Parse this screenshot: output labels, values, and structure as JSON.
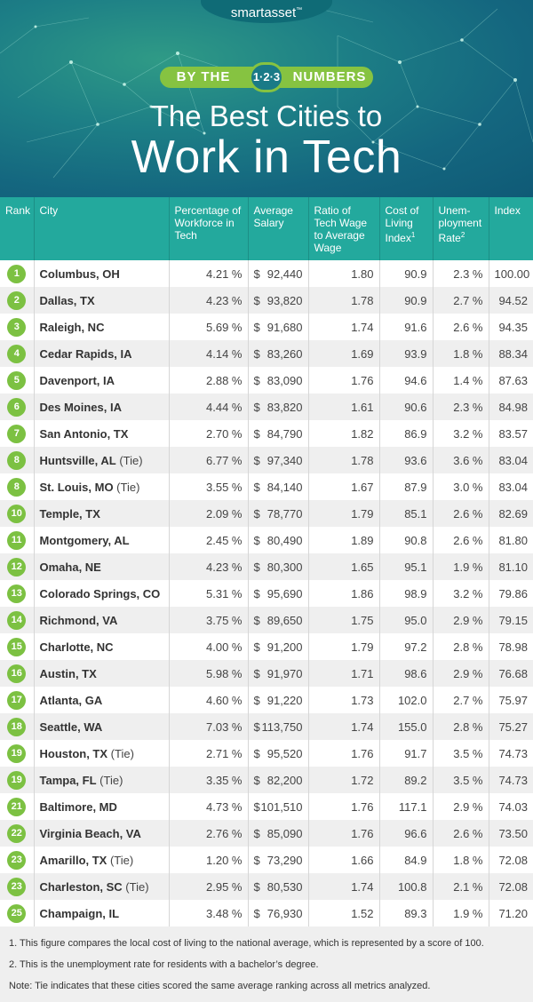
{
  "brand": {
    "logo": "smartasset",
    "logo_tm": "™"
  },
  "banner": {
    "by_the": "BY THE",
    "badge": "1·2·3",
    "numbers": "NUMBERS",
    "title_line1": "The Best Cities to",
    "title_line2": "Work in Tech"
  },
  "table": {
    "headers": {
      "rank": "Rank",
      "city": "City",
      "pct": "Percentage of Workforce in Tech",
      "salary": "Average Salary",
      "ratio": "Ratio of Tech Wage to Average Wage",
      "col": "Cost of Living Index",
      "col_sup": "1",
      "unemp": "Unem-ployment Rate",
      "unemp_sup": "2",
      "index": "Index"
    },
    "rows": [
      {
        "rank": "1",
        "city": "Columbus, OH",
        "tie": "",
        "pct": "4.21 %",
        "cur": "$",
        "salary": "92,440",
        "ratio": "1.80",
        "col": "90.9",
        "unemp": "2.3 %",
        "index": "100.00"
      },
      {
        "rank": "2",
        "city": "Dallas, TX",
        "tie": "",
        "pct": "4.23 %",
        "cur": "$",
        "salary": "93,820",
        "ratio": "1.78",
        "col": "90.9",
        "unemp": "2.7 %",
        "index": "94.52"
      },
      {
        "rank": "3",
        "city": "Raleigh, NC",
        "tie": "",
        "pct": "5.69 %",
        "cur": "$",
        "salary": "91,680",
        "ratio": "1.74",
        "col": "91.6",
        "unemp": "2.6 %",
        "index": "94.35"
      },
      {
        "rank": "4",
        "city": "Cedar Rapids, IA",
        "tie": "",
        "pct": "4.14 %",
        "cur": "$",
        "salary": "83,260",
        "ratio": "1.69",
        "col": "93.9",
        "unemp": "1.8 %",
        "index": "88.34"
      },
      {
        "rank": "5",
        "city": "Davenport, IA",
        "tie": "",
        "pct": "2.88 %",
        "cur": "$",
        "salary": "83,090",
        "ratio": "1.76",
        "col": "94.6",
        "unemp": "1.4 %",
        "index": "87.63"
      },
      {
        "rank": "6",
        "city": "Des Moines, IA",
        "tie": "",
        "pct": "4.44 %",
        "cur": "$",
        "salary": "83,820",
        "ratio": "1.61",
        "col": "90.6",
        "unemp": "2.3 %",
        "index": "84.98"
      },
      {
        "rank": "7",
        "city": "San Antonio, TX",
        "tie": "",
        "pct": "2.70 %",
        "cur": "$",
        "salary": "84,790",
        "ratio": "1.82",
        "col": "86.9",
        "unemp": "3.2 %",
        "index": "83.57"
      },
      {
        "rank": "8",
        "city": "Huntsville, AL",
        "tie": " (Tie)",
        "pct": "6.77 %",
        "cur": "$",
        "salary": "97,340",
        "ratio": "1.78",
        "col": "93.6",
        "unemp": "3.6 %",
        "index": "83.04"
      },
      {
        "rank": "8",
        "city": "St. Louis, MO",
        "tie": " (Tie)",
        "pct": "3.55 %",
        "cur": "$",
        "salary": "84,140",
        "ratio": "1.67",
        "col": "87.9",
        "unemp": "3.0 %",
        "index": "83.04"
      },
      {
        "rank": "10",
        "city": "Temple, TX",
        "tie": "",
        "pct": "2.09 %",
        "cur": "$",
        "salary": "78,770",
        "ratio": "1.79",
        "col": "85.1",
        "unemp": "2.6 %",
        "index": "82.69"
      },
      {
        "rank": "11",
        "city": "Montgomery, AL",
        "tie": "",
        "pct": "2.45 %",
        "cur": "$",
        "salary": "80,490",
        "ratio": "1.89",
        "col": "90.8",
        "unemp": "2.6 %",
        "index": "81.80"
      },
      {
        "rank": "12",
        "city": "Omaha, NE",
        "tie": "",
        "pct": "4.23 %",
        "cur": "$",
        "salary": "80,300",
        "ratio": "1.65",
        "col": "95.1",
        "unemp": "1.9 %",
        "index": "81.10"
      },
      {
        "rank": "13",
        "city": "Colorado Springs, CO",
        "tie": "",
        "pct": "5.31 %",
        "cur": "$",
        "salary": "95,690",
        "ratio": "1.86",
        "col": "98.9",
        "unemp": "3.2 %",
        "index": "79.86"
      },
      {
        "rank": "14",
        "city": "Richmond, VA",
        "tie": "",
        "pct": "3.75 %",
        "cur": "$",
        "salary": "89,650",
        "ratio": "1.75",
        "col": "95.0",
        "unemp": "2.9 %",
        "index": "79.15"
      },
      {
        "rank": "15",
        "city": "Charlotte, NC",
        "tie": "",
        "pct": "4.00 %",
        "cur": "$",
        "salary": "91,200",
        "ratio": "1.79",
        "col": "97.2",
        "unemp": "2.8 %",
        "index": "78.98"
      },
      {
        "rank": "16",
        "city": "Austin, TX",
        "tie": "",
        "pct": "5.98 %",
        "cur": "$",
        "salary": "91,970",
        "ratio": "1.71",
        "col": "98.6",
        "unemp": "2.9 %",
        "index": "76.68"
      },
      {
        "rank": "17",
        "city": "Atlanta, GA",
        "tie": "",
        "pct": "4.60 %",
        "cur": "$",
        "salary": "91,220",
        "ratio": "1.73",
        "col": "102.0",
        "unemp": "2.7 %",
        "index": "75.97"
      },
      {
        "rank": "18",
        "city": "Seattle, WA",
        "tie": "",
        "pct": "7.03 %",
        "cur": "$",
        "salary": "113,750",
        "ratio": "1.74",
        "col": "155.0",
        "unemp": "2.8 %",
        "index": "75.27"
      },
      {
        "rank": "19",
        "city": "Houston, TX",
        "tie": " (Tie)",
        "pct": "2.71 %",
        "cur": "$",
        "salary": "95,520",
        "ratio": "1.76",
        "col": "91.7",
        "unemp": "3.5 %",
        "index": "74.73"
      },
      {
        "rank": "19",
        "city": "Tampa, FL",
        "tie": " (Tie)",
        "pct": "3.35 %",
        "cur": "$",
        "salary": "82,200",
        "ratio": "1.72",
        "col": "89.2",
        "unemp": "3.5 %",
        "index": "74.73"
      },
      {
        "rank": "21",
        "city": "Baltimore, MD",
        "tie": "",
        "pct": "4.73 %",
        "cur": "$",
        "salary": "101,510",
        "ratio": "1.76",
        "col": "117.1",
        "unemp": "2.9 %",
        "index": "74.03"
      },
      {
        "rank": "22",
        "city": "Virginia Beach, VA",
        "tie": "",
        "pct": "2.76 %",
        "cur": "$",
        "salary": "85,090",
        "ratio": "1.76",
        "col": "96.6",
        "unemp": "2.6 %",
        "index": "73.50"
      },
      {
        "rank": "23",
        "city": "Amarillo, TX",
        "tie": " (Tie)",
        "pct": "1.20 %",
        "cur": "$",
        "salary": "73,290",
        "ratio": "1.66",
        "col": "84.9",
        "unemp": "1.8 %",
        "index": "72.08"
      },
      {
        "rank": "23",
        "city": "Charleston, SC",
        "tie": " (Tie)",
        "pct": "2.95 %",
        "cur": "$",
        "salary": "80,530",
        "ratio": "1.74",
        "col": "100.8",
        "unemp": "2.1 %",
        "index": "72.08"
      },
      {
        "rank": "25",
        "city": "Champaign, IL",
        "tie": "",
        "pct": "3.48 %",
        "cur": "$",
        "salary": "76,930",
        "ratio": "1.52",
        "col": "89.3",
        "unemp": "1.9 %",
        "index": "71.20"
      }
    ]
  },
  "notes": {
    "n1": "1.  This figure compares the local cost of living to the national average, which is represented by a score of 100.",
    "n2": "2. This is the unemployment rate for residents with a bachelor’s degree.",
    "n3": "Note: Tie indicates that these cities scored the same average ranking across all metrics analyzed."
  },
  "colors": {
    "header_teal": "#23a99d",
    "rank_green": "#7cc142",
    "banner_teal": "#14667f",
    "badge_green": "#86c341"
  }
}
